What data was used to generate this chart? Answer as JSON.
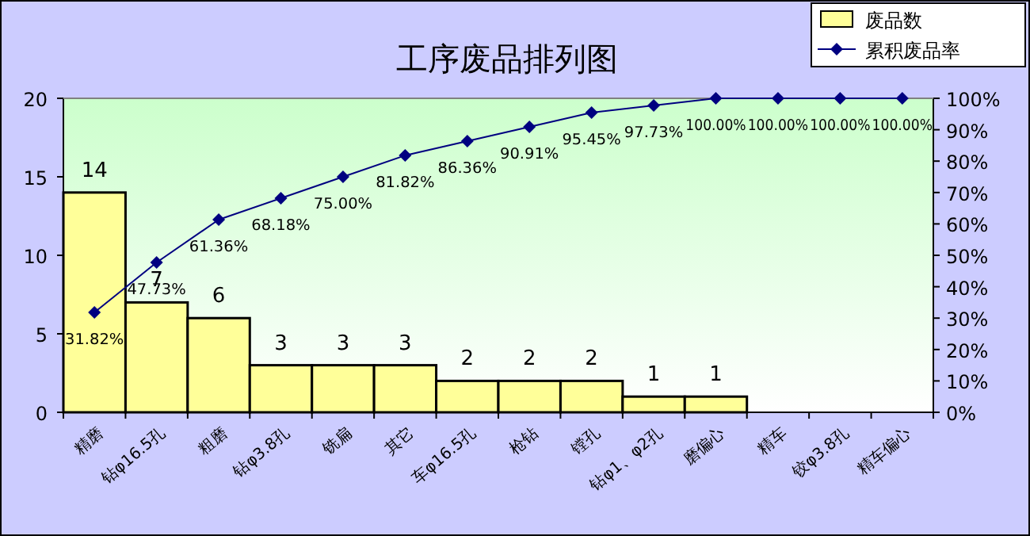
{
  "chart_data": {
    "type": "bar",
    "title": "工序废品排列图",
    "categories": [
      "精磨",
      "钻φ16.5孔",
      "粗磨",
      "钻φ3.8孔",
      "铣扁",
      "其它",
      "车φ16.5孔",
      "枪钻",
      "镗孔",
      "钻φ1、φ2孔",
      "磨偏心",
      "精车",
      "铰φ3.8孔",
      "精车偏心"
    ],
    "series": [
      {
        "name": "废品数",
        "color": "#ffff99",
        "values": [
          14,
          7,
          6,
          3,
          3,
          3,
          2,
          2,
          2,
          1,
          1,
          0,
          0,
          0
        ],
        "value_labels": [
          "14",
          "7",
          "6",
          "3",
          "3",
          "3",
          "2",
          "2",
          "2",
          "1",
          "1",
          null,
          null,
          null
        ]
      },
      {
        "name": "累积废品率",
        "type": "line",
        "axis": "y2",
        "color": "#000080",
        "values": [
          31.82,
          47.73,
          61.36,
          68.18,
          75.0,
          81.82,
          86.36,
          90.91,
          95.45,
          97.73,
          100,
          100,
          100,
          100
        ],
        "value_labels": [
          "31.82%",
          "47.73%",
          "61.36%",
          "68.18%",
          "75.00%",
          "81.82%",
          "86.36%",
          "90.91%",
          "95.45%",
          "97.73%",
          "100.00%",
          "100.00%",
          "100.00%",
          "100.00%"
        ]
      }
    ],
    "ylim": [
      0,
      20
    ],
    "yticks": [
      0,
      5,
      10,
      15,
      20
    ],
    "y2lim": [
      0,
      100
    ],
    "y2ticks": [
      {
        "value": 0,
        "label": "0%"
      },
      {
        "value": 10,
        "label": "10%"
      },
      {
        "value": 20,
        "label": "20%"
      },
      {
        "value": 30,
        "label": "30%"
      },
      {
        "value": 40,
        "label": "40%"
      },
      {
        "value": 50,
        "label": "50%"
      },
      {
        "value": 60,
        "label": "60%"
      },
      {
        "value": 70,
        "label": "70%"
      },
      {
        "value": 80,
        "label": "80%"
      },
      {
        "value": 90,
        "label": "90%"
      },
      {
        "value": 100,
        "label": "100%"
      }
    ],
    "marker": "diamond",
    "legend": "top right",
    "grid": false
  }
}
